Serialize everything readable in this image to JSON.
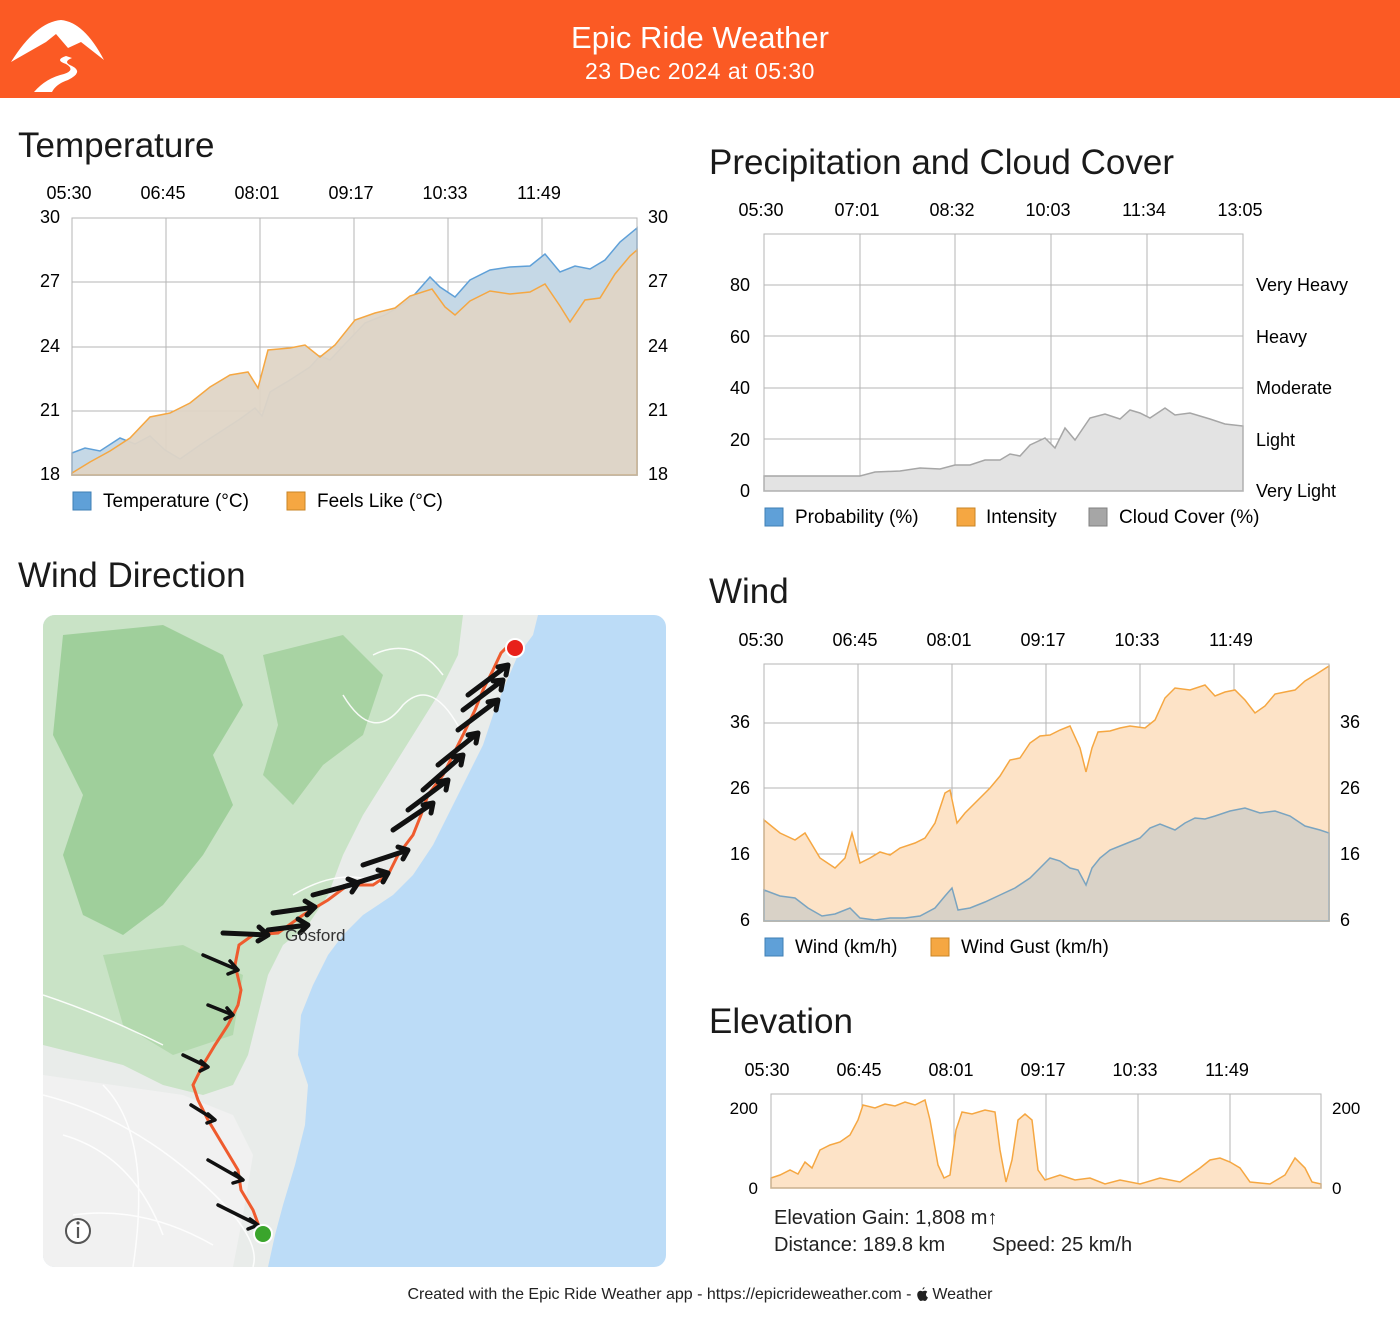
{
  "header": {
    "title": "Epic Ride Weather",
    "subtitle": "23 Dec 2024 at 05:30",
    "logo_icon": "mountain-road-logo-icon",
    "bg_color": "#fb5a24"
  },
  "temperature": {
    "title": "Temperature",
    "time_ticks": [
      "05:30",
      "06:45",
      "08:01",
      "09:17",
      "10:33",
      "11:49"
    ],
    "y_ticks": [
      "30",
      "27",
      "24",
      "21",
      "18"
    ],
    "legend": [
      {
        "label": "Temperature (°C)",
        "color": "#5fa0d8"
      },
      {
        "label": "Feels Like (°C)",
        "color": "#f5a742"
      }
    ]
  },
  "precipitation": {
    "title": "Precipitation and Cloud Cover",
    "time_ticks": [
      "05:30",
      "07:01",
      "08:32",
      "10:03",
      "11:34",
      "13:05"
    ],
    "y_ticks": [
      "80",
      "60",
      "40",
      "20",
      "0"
    ],
    "intensity_labels": [
      "Very Heavy",
      "Heavy",
      "Moderate",
      "Light",
      "Very Light"
    ],
    "legend": [
      {
        "label": "Probability (%)",
        "color": "#5fa0d8"
      },
      {
        "label": "Intensity",
        "color": "#f5a742"
      },
      {
        "label": "Cloud Cover (%)",
        "color": "#a6a6a6"
      }
    ]
  },
  "wind_direction": {
    "title": "Wind Direction",
    "place_label": "Gosford",
    "info_icon": "info-icon"
  },
  "wind": {
    "title": "Wind",
    "time_ticks": [
      "05:30",
      "06:45",
      "08:01",
      "09:17",
      "10:33",
      "11:49"
    ],
    "y_ticks": [
      "36",
      "26",
      "16",
      "6"
    ],
    "legend": [
      {
        "label": "Wind (km/h)",
        "color": "#5fa0d8"
      },
      {
        "label": "Wind Gust (km/h)",
        "color": "#f5a742"
      }
    ]
  },
  "elevation": {
    "title": "Elevation",
    "time_ticks": [
      "05:30",
      "06:45",
      "08:01",
      "09:17",
      "10:33",
      "11:49"
    ],
    "y_ticks": [
      "200",
      "0"
    ],
    "gain": "Elevation Gain: 1,808 m↑",
    "distance": "Distance: 189.8 km",
    "speed": "Speed: 25 km/h"
  },
  "footer": {
    "text": "Created with the Epic Ride Weather app - https://epicrideweather.com - ",
    "weather_label": "Weather",
    "apple_icon": "apple-icon"
  }
}
